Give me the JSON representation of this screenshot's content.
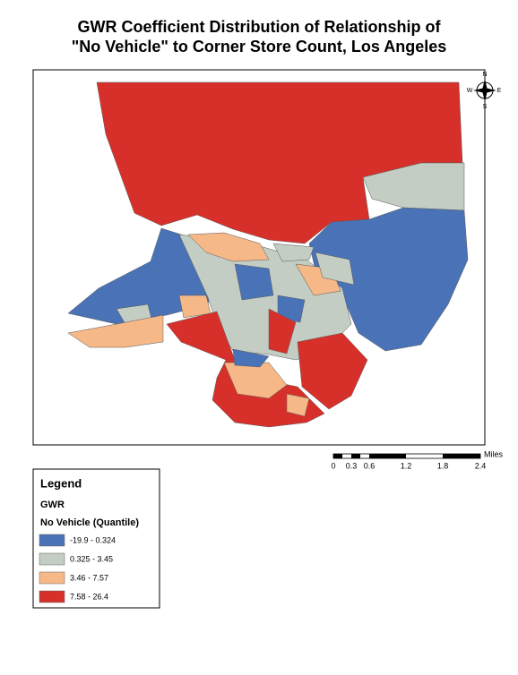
{
  "title": [
    "GWR Coefficient Distribution of Relationship of",
    "\"No Vehicle\" to Corner Store Count, Los Angeles"
  ],
  "north_arrow": {
    "n": "N",
    "s": "S",
    "e": "E",
    "w": "W"
  },
  "scale_bar": {
    "ticks": [
      "0",
      "0.3",
      "0.6",
      "1.2",
      "1.8",
      "2.4"
    ],
    "unit": "Miles"
  },
  "legend": {
    "title": "Legend",
    "layer": "GWR",
    "field": "No Vehicle (Quantile)",
    "classes": [
      {
        "label": "-19.9 - 0.324",
        "color": "#4a72b7"
      },
      {
        "label": "0.325 - 3.45",
        "color": "#c3cdc3"
      },
      {
        "label": "3.46 - 7.57",
        "color": "#f6b887"
      },
      {
        "label": "7.58 - 26.4",
        "color": "#d7302a"
      }
    ]
  }
}
